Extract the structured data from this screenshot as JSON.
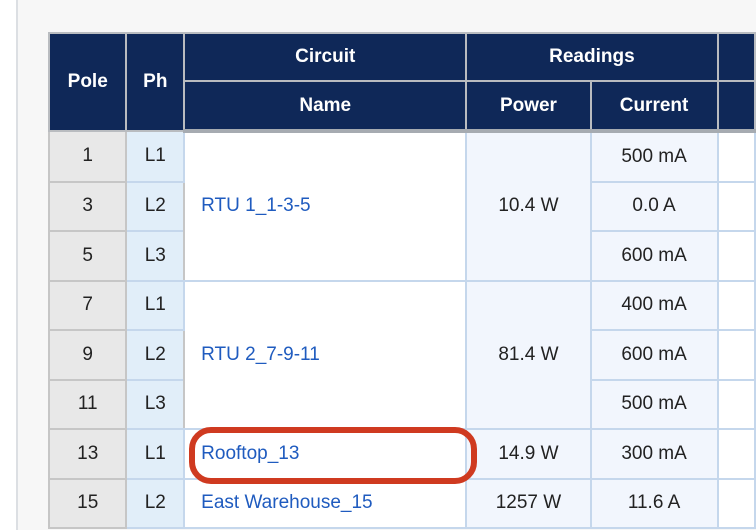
{
  "table": {
    "headers": {
      "pole": "Pole",
      "ph": "Ph",
      "circuit": "Circuit",
      "name": "Name",
      "readings": "Readings",
      "power": "Power",
      "current": "Current"
    },
    "circuits": [
      {
        "name": "RTU 1_1-3-5",
        "power": "10.4 W",
        "rows": [
          {
            "pole": "1",
            "ph": "L1",
            "current": "500 mA"
          },
          {
            "pole": "3",
            "ph": "L2",
            "current": "0.0 A"
          },
          {
            "pole": "5",
            "ph": "L3",
            "current": "600 mA"
          }
        ]
      },
      {
        "name": "RTU 2_7-9-11",
        "power": "81.4 W",
        "rows": [
          {
            "pole": "7",
            "ph": "L1",
            "current": "400 mA"
          },
          {
            "pole": "9",
            "ph": "L2",
            "current": "600 mA"
          },
          {
            "pole": "11",
            "ph": "L3",
            "current": "500 mA"
          }
        ]
      },
      {
        "name": "Rooftop_13",
        "power": "14.9 W",
        "highlighted": true,
        "rows": [
          {
            "pole": "13",
            "ph": "L1",
            "current": "300 mA"
          }
        ]
      },
      {
        "name": "East Warehouse_15",
        "power": "1257 W",
        "rows": [
          {
            "pole": "15",
            "ph": "L2",
            "current": "11.6 A"
          }
        ]
      }
    ]
  },
  "colors": {
    "header": "#0f2858",
    "link": "#1f5bbf",
    "highlight": "#cf3a20"
  }
}
